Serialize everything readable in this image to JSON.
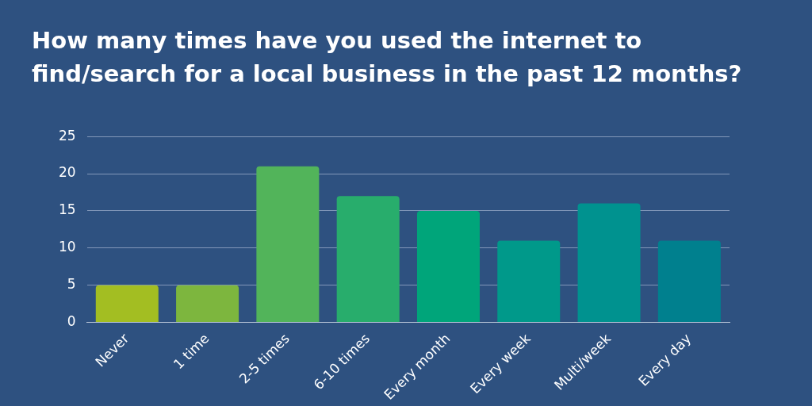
{
  "chart_data": {
    "type": "bar",
    "title": "How many times have you used the internet to find/search for a local business in the past 12 months?",
    "categories": [
      "Never",
      "1 time",
      "2-5 times",
      "6-10 times",
      "Every month",
      "Every week",
      "Multi/week",
      "Every day"
    ],
    "values": [
      5,
      5,
      21,
      17,
      15,
      11,
      16,
      11
    ],
    "colors": [
      "#a3be22",
      "#7db63e",
      "#52b45a",
      "#28ad6c",
      "#00a57a",
      "#00998a",
      "#00928f",
      "#00808e"
    ],
    "ylim": [
      0,
      25
    ],
    "yticks": [
      0,
      5,
      10,
      15,
      20,
      25
    ],
    "grid": "y",
    "legend": false
  }
}
